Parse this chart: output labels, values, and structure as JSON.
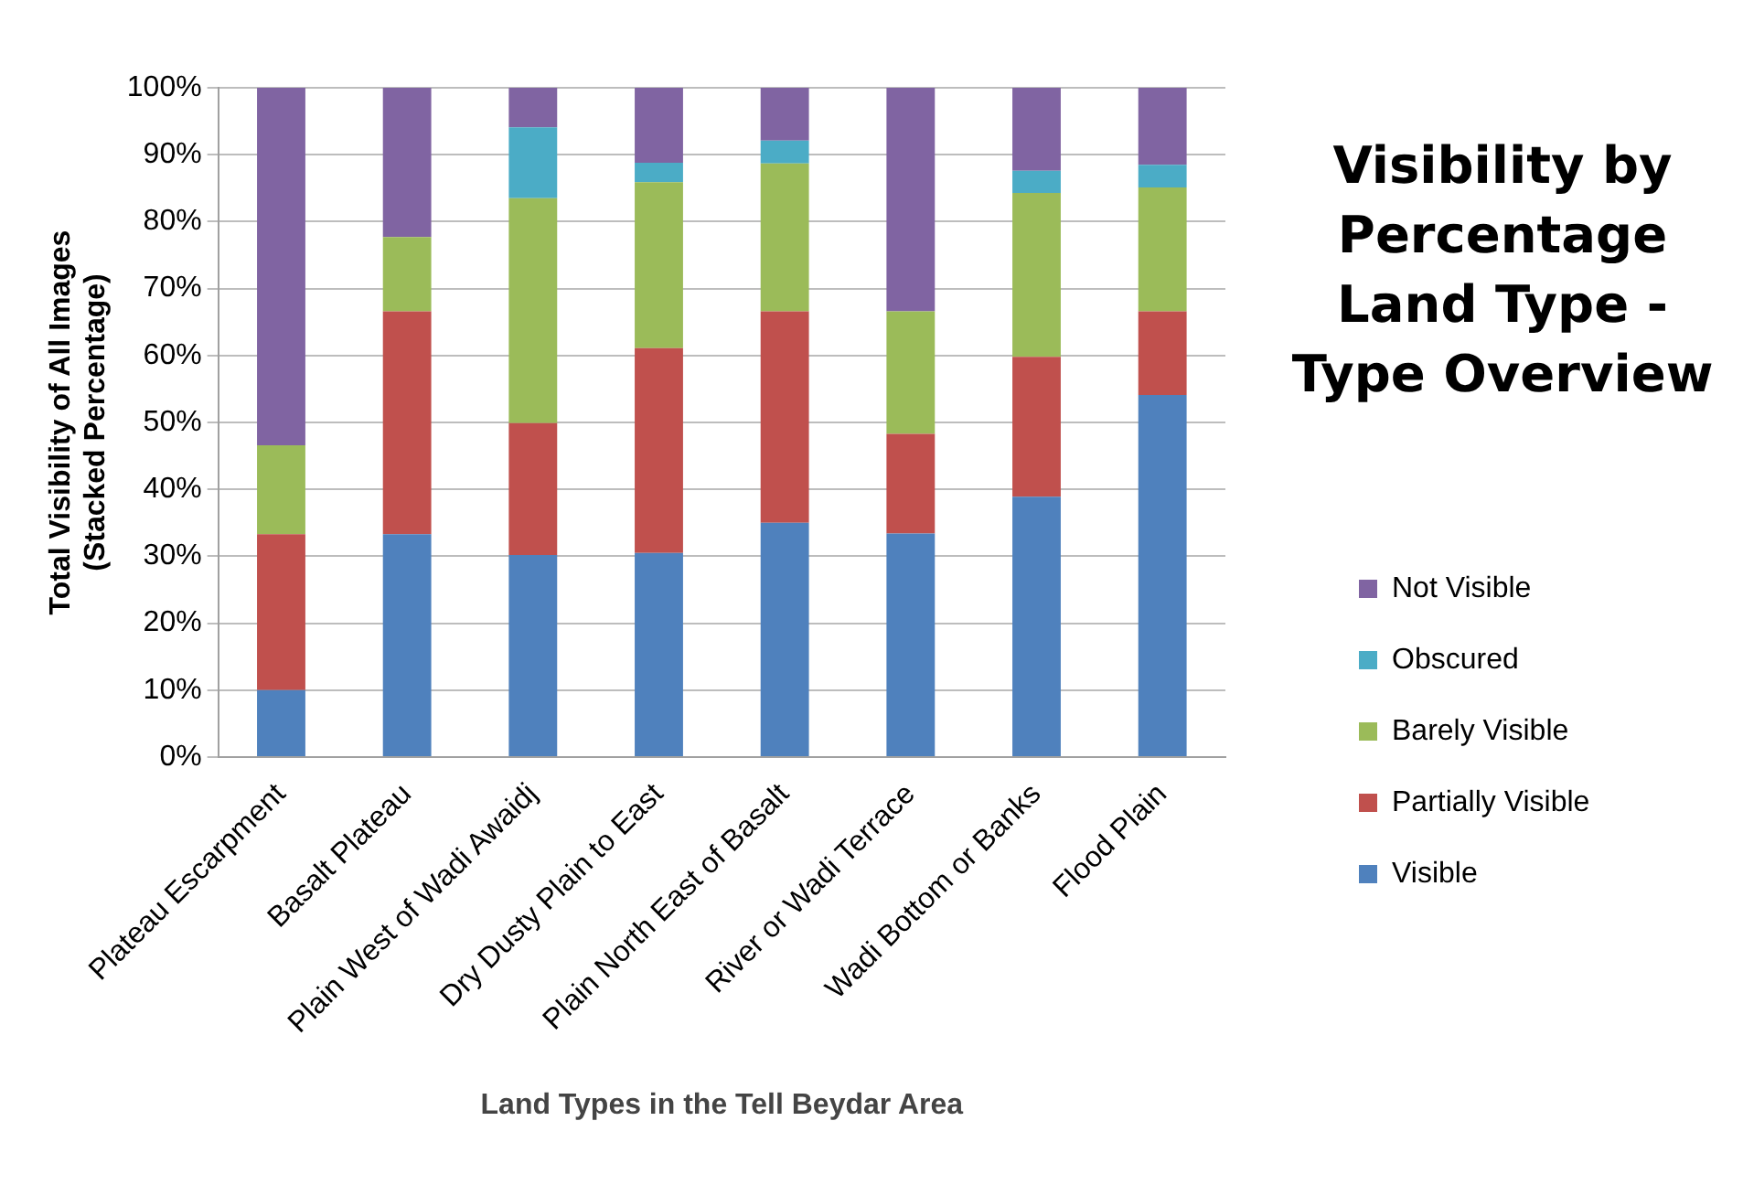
{
  "chart_data": {
    "type": "bar",
    "stacked": true,
    "title": "Visibility by Percentage Land Type - Type Overview",
    "xlabel": "Land Types in the Tell Beydar Area",
    "ylabel": "Total Visibility of All Images\n(Stacked Percentage)",
    "categories": [
      "Plateau Escarpment",
      "Basalt Plateau",
      "Plain West of Wadi Awaidj",
      "Dry Dusty Plain to East",
      "Plain North East of Basalt",
      "River or Wadi Terrace",
      "Wadi Bottom or Banks",
      "Flood Plain"
    ],
    "series": [
      {
        "name": "Visible",
        "color": "#4f81bd",
        "values": [
          10,
          33.3,
          30.2,
          30.5,
          35,
          33.4,
          38.9,
          54.1
        ]
      },
      {
        "name": "Partially Visible",
        "color": "#c0504d",
        "values": [
          23.3,
          33.3,
          19.7,
          30.6,
          31.6,
          14.9,
          20.9,
          12.5
        ]
      },
      {
        "name": "Barely Visible",
        "color": "#9bbb59",
        "values": [
          13.3,
          11.1,
          33.6,
          24.8,
          22.1,
          18.3,
          24.5,
          18.5
        ]
      },
      {
        "name": "Obscured",
        "color": "#4bacc6",
        "values": [
          0,
          0,
          10.6,
          2.9,
          3.4,
          0,
          3.3,
          3.4
        ]
      },
      {
        "name": "Not Visible",
        "color": "#8064a2",
        "values": [
          53.4,
          22.3,
          5.9,
          11.2,
          7.9,
          33.4,
          12.4,
          11.5
        ]
      }
    ],
    "ylim": [
      0,
      100
    ],
    "yticks": [
      {
        "value": 0,
        "label": "0%"
      },
      {
        "value": 10,
        "label": "10%"
      },
      {
        "value": 20,
        "label": "20%"
      },
      {
        "value": 30,
        "label": "30%"
      },
      {
        "value": 40,
        "label": "40%"
      },
      {
        "value": 50,
        "label": "50%"
      },
      {
        "value": 60,
        "label": "60%"
      },
      {
        "value": 70,
        "label": "70%"
      },
      {
        "value": 80,
        "label": "80%"
      },
      {
        "value": 90,
        "label": "90%"
      },
      {
        "value": 100,
        "label": "100%"
      }
    ],
    "grid": "y",
    "legend": "right"
  }
}
